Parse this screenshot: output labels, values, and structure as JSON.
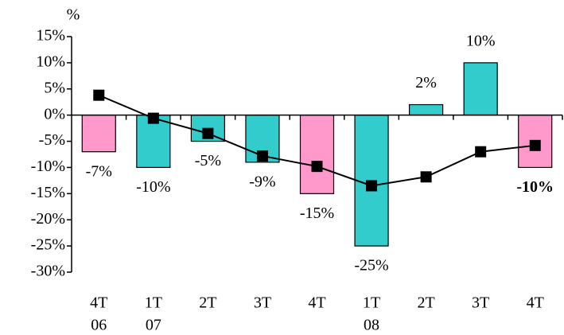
{
  "chart_data": {
    "type": "bar",
    "y_label": "%",
    "categories": [
      [
        "4T",
        "06"
      ],
      [
        "1T",
        "07"
      ],
      [
        "2T"
      ],
      [
        "3T"
      ],
      [
        "4T"
      ],
      [
        "1T",
        "08"
      ],
      [
        "2T"
      ],
      [
        "3T"
      ],
      [
        "4T"
      ]
    ],
    "values": [
      -7,
      -10,
      -5,
      -9,
      -15,
      -25,
      2,
      10,
      -10
    ],
    "value_labels": [
      "-7%",
      "-10%",
      "-5%",
      "-9%",
      "-15%",
      "-25%",
      "2%",
      "10%",
      "-10%"
    ],
    "colors": [
      "#ff99cc",
      "#33cccc",
      "#33cccc",
      "#33cccc",
      "#ff99cc",
      "#33cccc",
      "#33cccc",
      "#33cccc",
      "#ff99cc"
    ],
    "value_label_colors": [
      "#ff0000",
      "#000000",
      "#000000",
      "#000000",
      "#ff0000",
      "#000000",
      "#000000",
      "#000000",
      "#ff0000"
    ],
    "value_label_weights": [
      "normal",
      "normal",
      "normal",
      "normal",
      "normal",
      "normal",
      "normal",
      "normal",
      "bold"
    ],
    "line": {
      "color": "#000000",
      "values": [
        3.8,
        -0.6,
        -3.5,
        -7.8,
        -9.8,
        -13.5,
        -11.8,
        -7,
        -5.8
      ]
    },
    "ylim": [
      -30,
      15
    ],
    "yticks": [
      {
        "value": 15,
        "label": "15%"
      },
      {
        "value": 10,
        "label": "10%"
      },
      {
        "value": 5,
        "label": "5%"
      },
      {
        "value": 0,
        "label": "0%"
      },
      {
        "value": -5,
        "label": "-5%"
      },
      {
        "value": -10,
        "label": "-10%"
      },
      {
        "value": -15,
        "label": "-15%"
      },
      {
        "value": -20,
        "label": "-20%"
      },
      {
        "value": -25,
        "label": "-25%"
      },
      {
        "value": -30,
        "label": "-30%"
      }
    ]
  }
}
